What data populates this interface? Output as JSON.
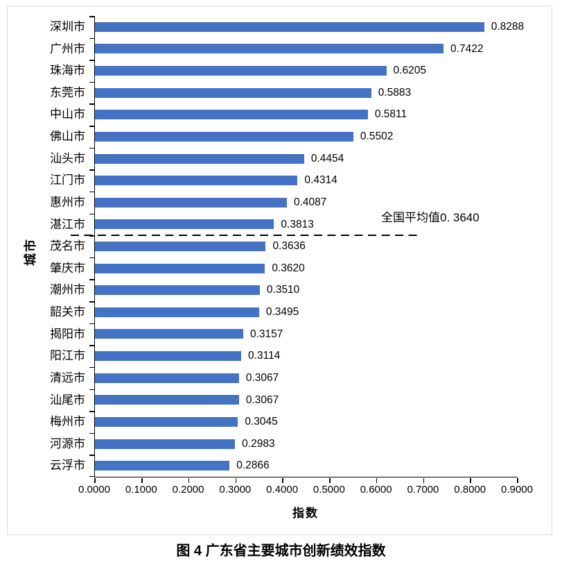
{
  "figure_caption": "图 4 广东省主要城市创新绩效指数",
  "chart_data": {
    "type": "bar",
    "orientation": "horizontal",
    "title": "",
    "xlabel": "指数",
    "ylabel": "城市",
    "xlim": [
      0,
      0.9
    ],
    "x_ticks": [
      "0.0000",
      "0.1000",
      "0.2000",
      "0.3000",
      "0.4000",
      "0.5000",
      "0.6000",
      "0.7000",
      "0.8000",
      "0.9000"
    ],
    "grid": false,
    "legend": null,
    "bar_color": "#4472C4",
    "axis_color": "#000000",
    "frame_border_color": "#D9D9D9",
    "categories": [
      "深圳市",
      "广州市",
      "珠海市",
      "东莞市",
      "中山市",
      "佛山市",
      "汕头市",
      "江门市",
      "惠州市",
      "湛江市",
      "茂名市",
      "肇庆市",
      "潮州市",
      "韶关市",
      "揭阳市",
      "阳江市",
      "清远市",
      "汕尾市",
      "梅州市",
      "河源市",
      "云浮市"
    ],
    "values": [
      0.8288,
      0.7422,
      0.6205,
      0.5883,
      0.5811,
      0.5502,
      0.4454,
      0.4314,
      0.4087,
      0.3813,
      0.3636,
      0.362,
      0.351,
      0.3495,
      0.3157,
      0.3114,
      0.3067,
      0.3067,
      0.3045,
      0.2983,
      0.2866
    ],
    "value_labels": [
      "0.8288",
      "0.7422",
      "0.6205",
      "0.5883",
      "0.5811",
      "0.5502",
      "0.4454",
      "0.4314",
      "0.4087",
      "0.3813",
      "0.3636",
      "0.3620",
      "0.3510",
      "0.3495",
      "0.3157",
      "0.3114",
      "0.3067",
      "0.3067",
      "0.3045",
      "0.2983",
      "0.2866"
    ],
    "reference_line": {
      "label": "全国平均值0. 3640",
      "value": 0.364,
      "style": "dashed",
      "color": "#000000",
      "line_after_category": "湛江市"
    }
  }
}
